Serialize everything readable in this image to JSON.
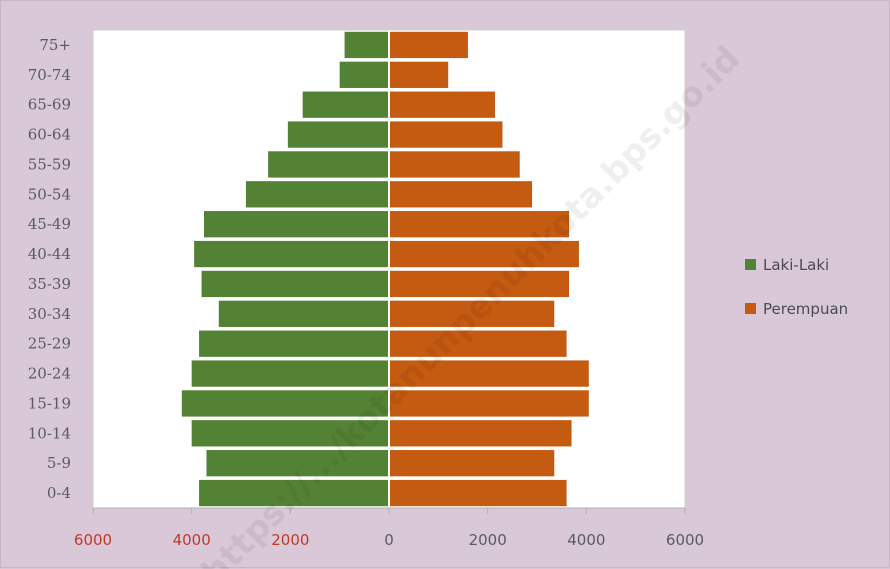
{
  "chart_data": {
    "type": "bar",
    "orientation": "horizontal-pyramid",
    "categories": [
      "0-4",
      "5-9",
      "10-14",
      "15-19",
      "20-24",
      "25-29",
      "30-34",
      "35-39",
      "40-44",
      "45-49",
      "50-54",
      "55-59",
      "60-64",
      "65-69",
      "70-74",
      "75+"
    ],
    "category_labels": [
      "0-4",
      "5-9",
      "10-14",
      "15-19",
      "20-24",
      "25-29",
      "30-34",
      "35-39",
      "40-44",
      "45-49",
      "50-54",
      "55-59",
      "60-64",
      "65-69",
      "70-74",
      "75+"
    ],
    "series": [
      {
        "name": "Laki-Laki",
        "color": "#548235",
        "values": [
          3850,
          3700,
          4000,
          4200,
          4000,
          3850,
          3450,
          3800,
          3950,
          3750,
          2900,
          2450,
          2050,
          1750,
          1000,
          900
        ]
      },
      {
        "name": "Perempuan",
        "color": "#c55a11",
        "values": [
          3600,
          3350,
          3700,
          4050,
          4050,
          3600,
          3350,
          3650,
          3850,
          3650,
          2900,
          2650,
          2300,
          2150,
          1200,
          1600
        ]
      }
    ],
    "xlim": [
      -6000,
      6000
    ],
    "x_ticks": [
      -6000,
      -4000,
      -2000,
      0,
      2000,
      4000,
      6000
    ],
    "x_tick_labels": [
      "6000",
      "4000",
      "2000",
      "0",
      "2000",
      "4000",
      "6000"
    ],
    "x_tick_colors": [
      "#c0392b",
      "#c0392b",
      "#c0392b",
      "#5a5a66",
      "#5a5a66",
      "#5a5a66",
      "#5a5a66"
    ],
    "legend_position": "right",
    "grid": false,
    "watermark": "https://.../kotanunpenuhkota.bps.go.id"
  }
}
